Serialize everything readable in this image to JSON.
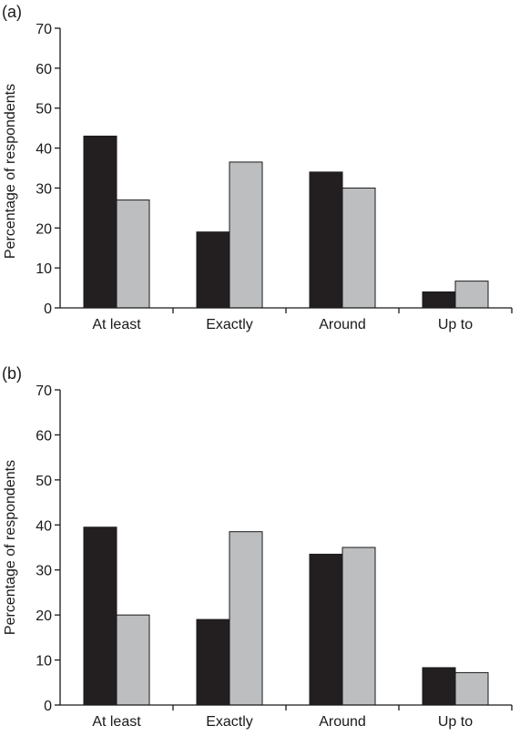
{
  "colors": {
    "series_dark": "#231f20",
    "series_light": "#bcbec0",
    "axis": "#1a1a1a"
  },
  "chart_data": [
    {
      "type": "bar",
      "panel_label": "(a)",
      "ylabel": "Percentage of respondents",
      "xlabel": "",
      "ylim": [
        0,
        70
      ],
      "yticks": [
        0,
        10,
        20,
        30,
        40,
        50,
        60,
        70
      ],
      "categories": [
        "At least",
        "Exactly",
        "Around",
        "Up to"
      ],
      "series": [
        {
          "values": [
            43,
            19,
            34,
            4
          ]
        },
        {
          "values": [
            27,
            36.5,
            30,
            6.7
          ]
        }
      ],
      "grid": false
    },
    {
      "type": "bar",
      "panel_label": "(b)",
      "ylabel": "Percentage of respondents",
      "xlabel": "",
      "ylim": [
        0,
        70
      ],
      "yticks": [
        0,
        10,
        20,
        30,
        40,
        50,
        60,
        70
      ],
      "categories": [
        "At least",
        "Exactly",
        "Around",
        "Up to"
      ],
      "series": [
        {
          "values": [
            39.5,
            19,
            33.5,
            8.3
          ]
        },
        {
          "values": [
            20,
            38.5,
            35,
            7.2
          ]
        }
      ],
      "grid": false
    }
  ]
}
